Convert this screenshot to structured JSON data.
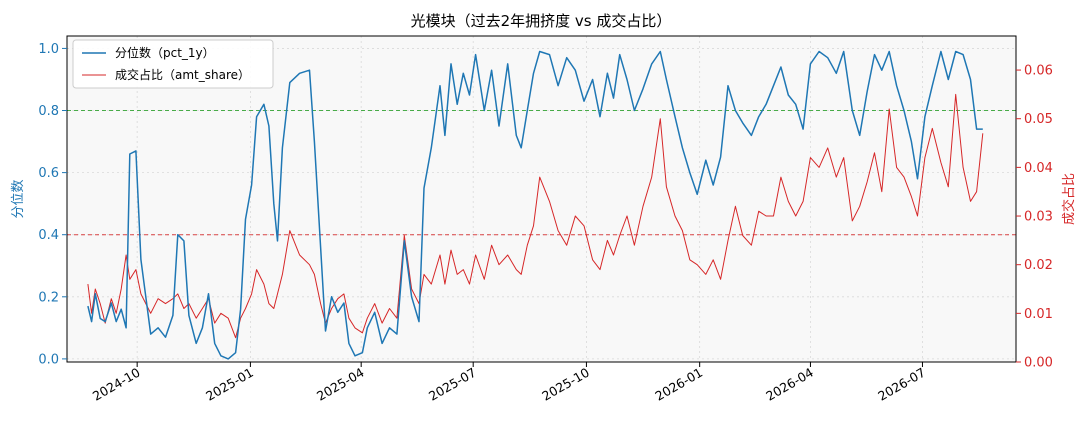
{
  "chart_data": {
    "type": "line",
    "title": "光模块（过去2年拥挤度 vs 成交占比）",
    "xlabel": "",
    "ylabel_left": "分位数",
    "ylabel_right": "成交占比",
    "xlim": [
      "2024-08-05",
      "2026-09-15"
    ],
    "ylim_left": [
      -0.01,
      1.04
    ],
    "ylim_right": [
      0.0,
      0.067
    ],
    "x_ticks": [
      "2024-10",
      "2025-01",
      "2025-04",
      "2025-07",
      "2025-10",
      "2026-01",
      "2026-04",
      "2026-07"
    ],
    "y_ticks_left": [
      "0.0",
      "0.2",
      "0.4",
      "0.6",
      "0.8",
      "1.0"
    ],
    "y_ticks_right": [
      "0.00",
      "0.01",
      "0.02",
      "0.03",
      "0.04",
      "0.05",
      "0.06"
    ],
    "grid": true,
    "legend_position": "top-left",
    "reference_lines": [
      {
        "axis": "left",
        "value": 0.8,
        "color": "#2ca02c"
      },
      {
        "axis": "left",
        "value": 0.4,
        "color": "#d62728"
      }
    ],
    "colors": {
      "pct": "#1f77b4",
      "share": "#d62728"
    },
    "series": [
      {
        "name": "分位数（pct_1y）",
        "axis": "left",
        "points": [
          [
            "2024-08-22",
            0.17
          ],
          [
            "2024-08-25",
            0.12
          ],
          [
            "2024-08-28",
            0.21
          ],
          [
            "2024-09-01",
            0.13
          ],
          [
            "2024-09-05",
            0.12
          ],
          [
            "2024-09-10",
            0.18
          ],
          [
            "2024-09-14",
            0.12
          ],
          [
            "2024-09-18",
            0.16
          ],
          [
            "2024-09-22",
            0.1
          ],
          [
            "2024-09-25",
            0.66
          ],
          [
            "2024-09-30",
            0.67
          ],
          [
            "2024-10-04",
            0.32
          ],
          [
            "2024-10-08",
            0.2
          ],
          [
            "2024-10-12",
            0.08
          ],
          [
            "2024-10-18",
            0.1
          ],
          [
            "2024-10-24",
            0.07
          ],
          [
            "2024-10-30",
            0.14
          ],
          [
            "2024-11-03",
            0.4
          ],
          [
            "2024-11-08",
            0.38
          ],
          [
            "2024-11-12",
            0.14
          ],
          [
            "2024-11-18",
            0.05
          ],
          [
            "2024-11-23",
            0.1
          ],
          [
            "2024-11-28",
            0.21
          ],
          [
            "2024-12-03",
            0.05
          ],
          [
            "2024-12-08",
            0.01
          ],
          [
            "2024-12-14",
            0.0
          ],
          [
            "2024-12-20",
            0.02
          ],
          [
            "2024-12-24",
            0.16
          ],
          [
            "2024-12-28",
            0.45
          ],
          [
            "2025-01-02",
            0.56
          ],
          [
            "2025-01-06",
            0.78
          ],
          [
            "2025-01-12",
            0.82
          ],
          [
            "2025-01-16",
            0.75
          ],
          [
            "2025-01-20",
            0.5
          ],
          [
            "2025-01-23",
            0.38
          ],
          [
            "2025-01-27",
            0.68
          ],
          [
            "2025-02-02",
            0.89
          ],
          [
            "2025-02-10",
            0.92
          ],
          [
            "2025-02-18",
            0.93
          ],
          [
            "2025-02-22",
            0.7
          ],
          [
            "2025-02-27",
            0.36
          ],
          [
            "2025-03-03",
            0.09
          ],
          [
            "2025-03-08",
            0.2
          ],
          [
            "2025-03-13",
            0.15
          ],
          [
            "2025-03-18",
            0.18
          ],
          [
            "2025-03-22",
            0.05
          ],
          [
            "2025-03-27",
            0.01
          ],
          [
            "2025-04-02",
            0.02
          ],
          [
            "2025-04-06",
            0.1
          ],
          [
            "2025-04-12",
            0.15
          ],
          [
            "2025-04-18",
            0.05
          ],
          [
            "2025-04-24",
            0.1
          ],
          [
            "2025-04-30",
            0.08
          ],
          [
            "2025-05-06",
            0.38
          ],
          [
            "2025-05-12",
            0.2
          ],
          [
            "2025-05-18",
            0.12
          ],
          [
            "2025-05-22",
            0.55
          ],
          [
            "2025-05-28",
            0.68
          ],
          [
            "2025-06-04",
            0.88
          ],
          [
            "2025-06-08",
            0.72
          ],
          [
            "2025-06-13",
            0.95
          ],
          [
            "2025-06-18",
            0.82
          ],
          [
            "2025-06-23",
            0.92
          ],
          [
            "2025-06-28",
            0.85
          ],
          [
            "2025-07-03",
            0.98
          ],
          [
            "2025-07-10",
            0.8
          ],
          [
            "2025-07-16",
            0.93
          ],
          [
            "2025-07-22",
            0.75
          ],
          [
            "2025-07-29",
            0.95
          ],
          [
            "2025-08-05",
            0.72
          ],
          [
            "2025-08-09",
            0.68
          ],
          [
            "2025-08-14",
            0.8
          ],
          [
            "2025-08-19",
            0.92
          ],
          [
            "2025-08-24",
            0.99
          ],
          [
            "2025-09-01",
            0.98
          ],
          [
            "2025-09-08",
            0.88
          ],
          [
            "2025-09-15",
            0.97
          ],
          [
            "2025-09-22",
            0.93
          ],
          [
            "2025-09-29",
            0.83
          ],
          [
            "2025-10-06",
            0.9
          ],
          [
            "2025-10-12",
            0.78
          ],
          [
            "2025-10-18",
            0.92
          ],
          [
            "2025-10-23",
            0.84
          ],
          [
            "2025-10-28",
            0.98
          ],
          [
            "2025-11-03",
            0.9
          ],
          [
            "2025-11-09",
            0.8
          ],
          [
            "2025-11-16",
            0.87
          ],
          [
            "2025-11-23",
            0.95
          ],
          [
            "2025-11-30",
            0.99
          ],
          [
            "2025-12-05",
            0.9
          ],
          [
            "2025-12-12",
            0.78
          ],
          [
            "2025-12-18",
            0.68
          ],
          [
            "2025-12-24",
            0.6
          ],
          [
            "2025-12-30",
            0.53
          ],
          [
            "2026-01-06",
            0.64
          ],
          [
            "2026-01-12",
            0.56
          ],
          [
            "2026-01-18",
            0.65
          ],
          [
            "2026-01-24",
            0.88
          ],
          [
            "2026-01-30",
            0.8
          ],
          [
            "2026-02-05",
            0.76
          ],
          [
            "2026-02-12",
            0.72
          ],
          [
            "2026-02-18",
            0.78
          ],
          [
            "2026-02-24",
            0.82
          ],
          [
            "2026-03-02",
            0.88
          ],
          [
            "2026-03-08",
            0.94
          ],
          [
            "2026-03-14",
            0.85
          ],
          [
            "2026-03-20",
            0.82
          ],
          [
            "2026-03-26",
            0.74
          ],
          [
            "2026-04-01",
            0.95
          ],
          [
            "2026-04-08",
            0.99
          ],
          [
            "2026-04-15",
            0.97
          ],
          [
            "2026-04-22",
            0.92
          ],
          [
            "2026-04-28",
            0.99
          ],
          [
            "2026-05-05",
            0.8
          ],
          [
            "2026-05-11",
            0.72
          ],
          [
            "2026-05-17",
            0.86
          ],
          [
            "2026-05-23",
            0.98
          ],
          [
            "2026-05-29",
            0.93
          ],
          [
            "2026-06-04",
            0.99
          ],
          [
            "2026-06-10",
            0.88
          ],
          [
            "2026-06-16",
            0.8
          ],
          [
            "2026-06-22",
            0.7
          ],
          [
            "2026-06-27",
            0.58
          ],
          [
            "2026-07-03",
            0.78
          ],
          [
            "2026-07-09",
            0.88
          ],
          [
            "2026-07-16",
            0.99
          ],
          [
            "2026-07-22",
            0.9
          ],
          [
            "2026-07-28",
            0.99
          ],
          [
            "2026-08-03",
            0.98
          ],
          [
            "2026-08-09",
            0.9
          ],
          [
            "2026-08-14",
            0.74
          ],
          [
            "2026-08-19",
            0.74
          ]
        ]
      },
      {
        "name": "成交占比（amt_share）",
        "axis": "right",
        "points": [
          [
            "2024-08-22",
            0.016
          ],
          [
            "2024-08-25",
            0.01
          ],
          [
            "2024-08-28",
            0.015
          ],
          [
            "2024-09-01",
            0.012
          ],
          [
            "2024-09-05",
            0.008
          ],
          [
            "2024-09-10",
            0.013
          ],
          [
            "2024-09-14",
            0.01
          ],
          [
            "2024-09-18",
            0.015
          ],
          [
            "2024-09-22",
            0.022
          ],
          [
            "2024-09-25",
            0.017
          ],
          [
            "2024-09-30",
            0.019
          ],
          [
            "2024-10-04",
            0.014
          ],
          [
            "2024-10-08",
            0.012
          ],
          [
            "2024-10-12",
            0.01
          ],
          [
            "2024-10-18",
            0.013
          ],
          [
            "2024-10-24",
            0.012
          ],
          [
            "2024-10-30",
            0.013
          ],
          [
            "2024-11-03",
            0.014
          ],
          [
            "2024-11-08",
            0.011
          ],
          [
            "2024-11-12",
            0.012
          ],
          [
            "2024-11-18",
            0.009
          ],
          [
            "2024-11-23",
            0.011
          ],
          [
            "2024-11-28",
            0.013
          ],
          [
            "2024-12-03",
            0.008
          ],
          [
            "2024-12-08",
            0.01
          ],
          [
            "2024-12-14",
            0.009
          ],
          [
            "2024-12-20",
            0.005
          ],
          [
            "2024-12-24",
            0.009
          ],
          [
            "2024-12-28",
            0.011
          ],
          [
            "2025-01-02",
            0.014
          ],
          [
            "2025-01-06",
            0.019
          ],
          [
            "2025-01-12",
            0.016
          ],
          [
            "2025-01-16",
            0.012
          ],
          [
            "2025-01-20",
            0.011
          ],
          [
            "2025-01-23",
            0.014
          ],
          [
            "2025-01-27",
            0.018
          ],
          [
            "2025-02-02",
            0.027
          ],
          [
            "2025-02-10",
            0.022
          ],
          [
            "2025-02-18",
            0.02
          ],
          [
            "2025-02-22",
            0.018
          ],
          [
            "2025-02-27",
            0.012
          ],
          [
            "2025-03-03",
            0.008
          ],
          [
            "2025-03-08",
            0.011
          ],
          [
            "2025-03-13",
            0.013
          ],
          [
            "2025-03-18",
            0.014
          ],
          [
            "2025-03-22",
            0.009
          ],
          [
            "2025-03-27",
            0.007
          ],
          [
            "2025-04-02",
            0.006
          ],
          [
            "2025-04-06",
            0.009
          ],
          [
            "2025-04-12",
            0.012
          ],
          [
            "2025-04-18",
            0.008
          ],
          [
            "2025-04-24",
            0.011
          ],
          [
            "2025-04-30",
            0.009
          ],
          [
            "2025-05-06",
            0.026
          ],
          [
            "2025-05-12",
            0.015
          ],
          [
            "2025-05-18",
            0.012
          ],
          [
            "2025-05-22",
            0.018
          ],
          [
            "2025-05-28",
            0.016
          ],
          [
            "2025-06-04",
            0.022
          ],
          [
            "2025-06-08",
            0.016
          ],
          [
            "2025-06-13",
            0.023
          ],
          [
            "2025-06-18",
            0.018
          ],
          [
            "2025-06-23",
            0.019
          ],
          [
            "2025-06-28",
            0.016
          ],
          [
            "2025-07-03",
            0.022
          ],
          [
            "2025-07-10",
            0.017
          ],
          [
            "2025-07-16",
            0.024
          ],
          [
            "2025-07-22",
            0.02
          ],
          [
            "2025-07-29",
            0.022
          ],
          [
            "2025-08-05",
            0.019
          ],
          [
            "2025-08-09",
            0.018
          ],
          [
            "2025-08-14",
            0.024
          ],
          [
            "2025-08-19",
            0.028
          ],
          [
            "2025-08-24",
            0.038
          ],
          [
            "2025-09-01",
            0.033
          ],
          [
            "2025-09-08",
            0.027
          ],
          [
            "2025-09-15",
            0.024
          ],
          [
            "2025-09-22",
            0.03
          ],
          [
            "2025-09-29",
            0.028
          ],
          [
            "2025-10-06",
            0.021
          ],
          [
            "2025-10-12",
            0.019
          ],
          [
            "2025-10-18",
            0.025
          ],
          [
            "2025-10-23",
            0.022
          ],
          [
            "2025-10-28",
            0.026
          ],
          [
            "2025-11-03",
            0.03
          ],
          [
            "2025-11-09",
            0.024
          ],
          [
            "2025-11-16",
            0.032
          ],
          [
            "2025-11-23",
            0.038
          ],
          [
            "2025-11-30",
            0.05
          ],
          [
            "2025-12-05",
            0.036
          ],
          [
            "2025-12-12",
            0.03
          ],
          [
            "2025-12-18",
            0.027
          ],
          [
            "2025-12-24",
            0.021
          ],
          [
            "2025-12-30",
            0.02
          ],
          [
            "2026-01-06",
            0.018
          ],
          [
            "2026-01-12",
            0.021
          ],
          [
            "2026-01-18",
            0.017
          ],
          [
            "2026-01-24",
            0.025
          ],
          [
            "2026-01-30",
            0.032
          ],
          [
            "2026-02-05",
            0.026
          ],
          [
            "2026-02-12",
            0.024
          ],
          [
            "2026-02-18",
            0.031
          ],
          [
            "2026-02-24",
            0.03
          ],
          [
            "2026-03-02",
            0.03
          ],
          [
            "2026-03-08",
            0.038
          ],
          [
            "2026-03-14",
            0.033
          ],
          [
            "2026-03-20",
            0.03
          ],
          [
            "2026-03-26",
            0.033
          ],
          [
            "2026-04-01",
            0.042
          ],
          [
            "2026-04-08",
            0.04
          ],
          [
            "2026-04-15",
            0.044
          ],
          [
            "2026-04-22",
            0.038
          ],
          [
            "2026-04-28",
            0.042
          ],
          [
            "2026-05-05",
            0.029
          ],
          [
            "2026-05-11",
            0.032
          ],
          [
            "2026-05-17",
            0.037
          ],
          [
            "2026-05-23",
            0.043
          ],
          [
            "2026-05-29",
            0.035
          ],
          [
            "2026-06-04",
            0.052
          ],
          [
            "2026-06-10",
            0.04
          ],
          [
            "2026-06-16",
            0.038
          ],
          [
            "2026-06-22",
            0.034
          ],
          [
            "2026-06-27",
            0.03
          ],
          [
            "2026-07-03",
            0.042
          ],
          [
            "2026-07-09",
            0.048
          ],
          [
            "2026-07-16",
            0.041
          ],
          [
            "2026-07-22",
            0.036
          ],
          [
            "2026-07-28",
            0.055
          ],
          [
            "2026-08-03",
            0.04
          ],
          [
            "2026-08-09",
            0.033
          ],
          [
            "2026-08-14",
            0.035
          ],
          [
            "2026-08-19",
            0.047
          ]
        ]
      }
    ]
  }
}
